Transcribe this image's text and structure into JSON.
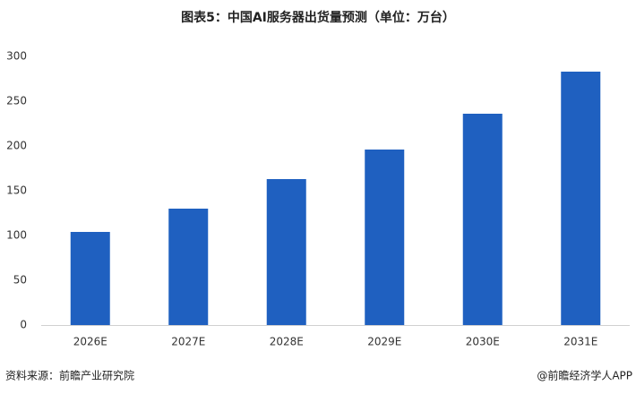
{
  "chart_data": {
    "type": "bar",
    "title": "图表5：中国AI服务器出货量预测（单位：万台）",
    "categories": [
      "2026E",
      "2027E",
      "2028E",
      "2029E",
      "2030E",
      "2031E"
    ],
    "values": [
      104,
      130,
      163,
      196,
      236,
      283
    ],
    "color": "#1f60c0",
    "ylim": [
      0,
      300
    ],
    "yticks": [
      0,
      50,
      100,
      150,
      200,
      250,
      300
    ],
    "grid": false,
    "source": "资料来源：前瞻产业研究院",
    "credit": "@前瞻经济学人APP"
  }
}
